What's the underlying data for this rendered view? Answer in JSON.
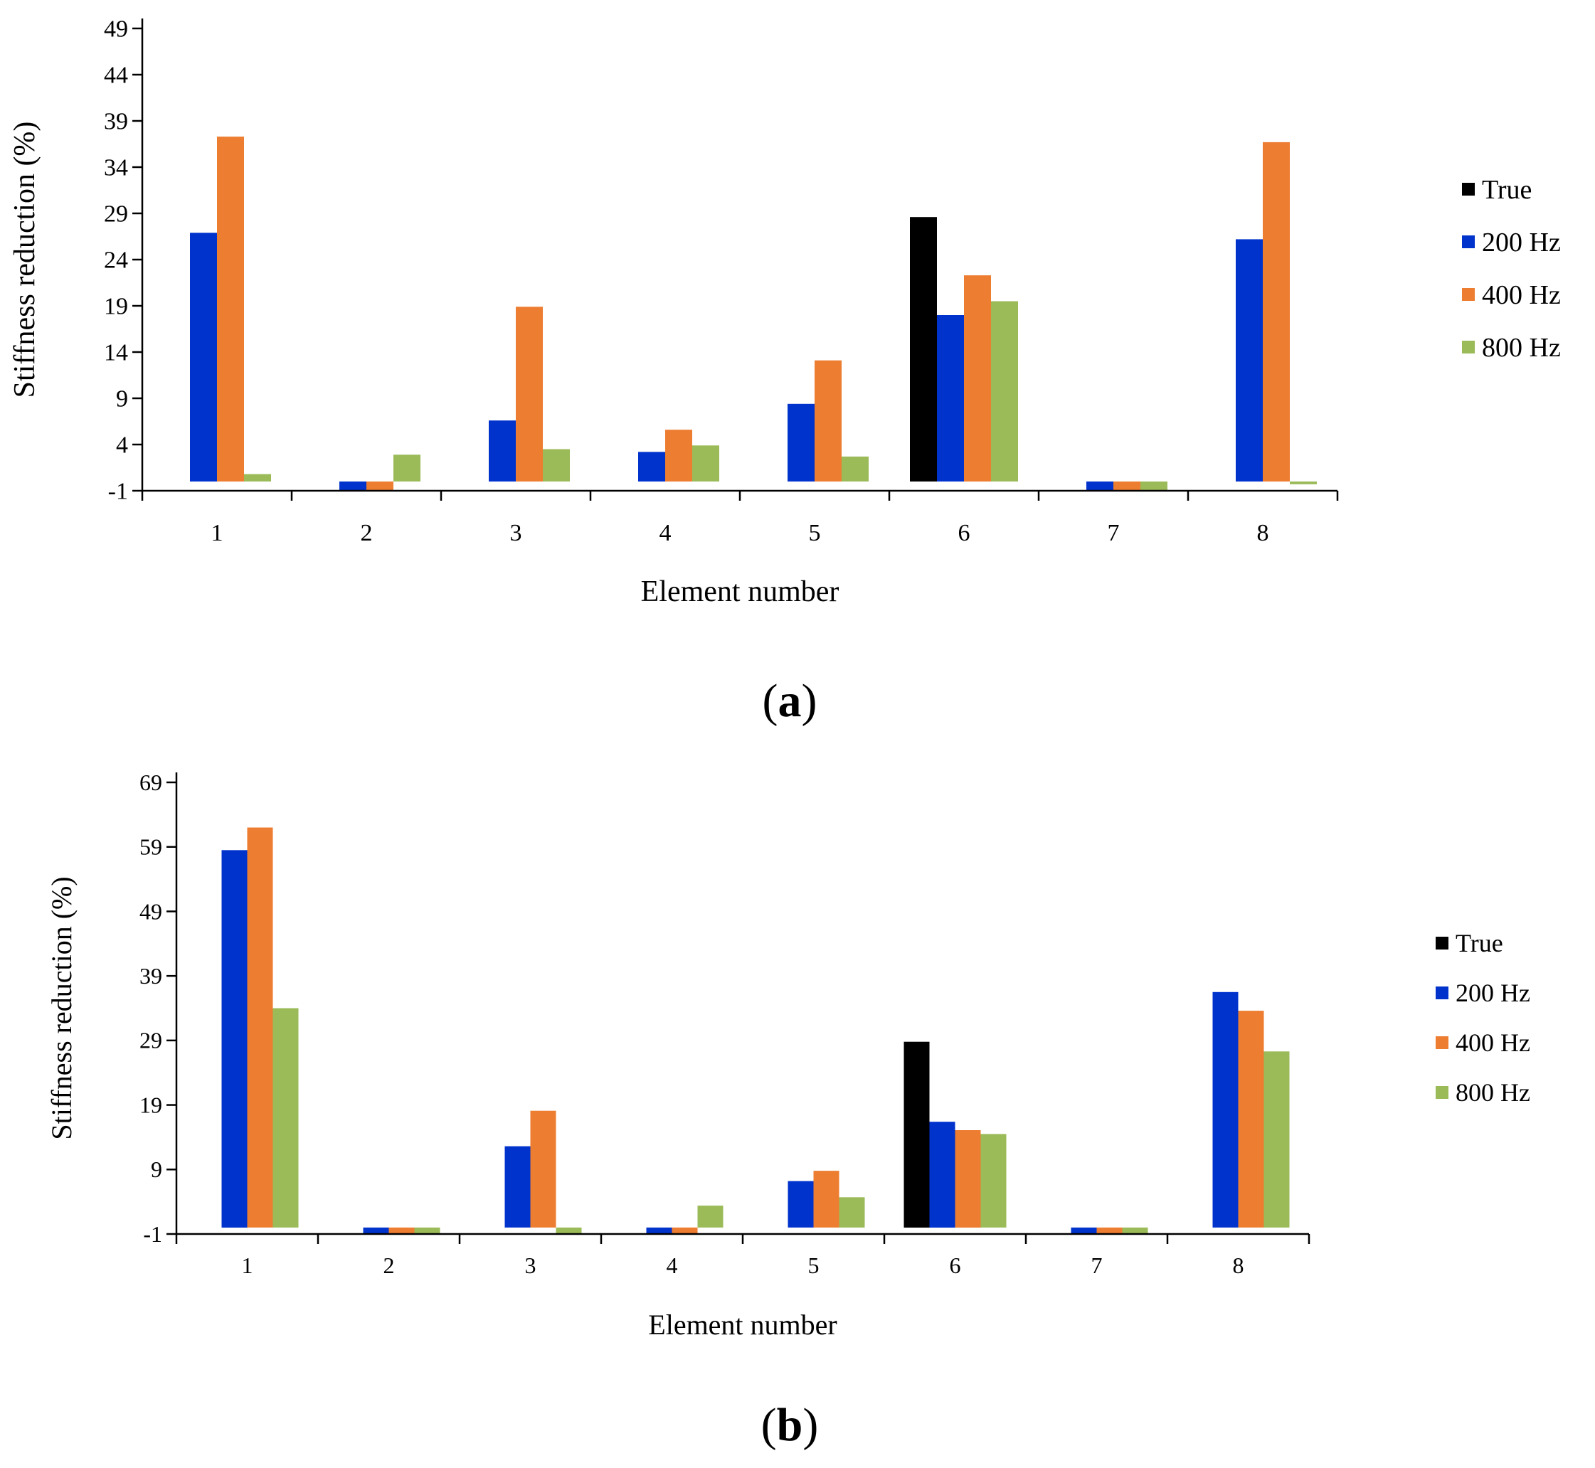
{
  "panels": [
    {
      "open": "(",
      "letter": "a",
      "close": ")"
    },
    {
      "open": "(",
      "letter": "b",
      "close": ")"
    }
  ],
  "colors": {
    "True": "#000000",
    "200 Hz": "#0033cc",
    "400 Hz": "#ed7d31",
    "800 Hz": "#9bbb59"
  },
  "chart_data": [
    {
      "type": "bar",
      "xlabel": "Element number",
      "ylabel": "Stiffness  reduction  (%)",
      "ylim": [
        -1,
        49
      ],
      "yticks": [
        -1,
        4,
        9,
        14,
        19,
        24,
        29,
        34,
        39,
        44,
        49
      ],
      "categories": [
        "1",
        "2",
        "3",
        "4",
        "5",
        "6",
        "7",
        "8"
      ],
      "series": [
        {
          "name": "True",
          "values": [
            0,
            0,
            0,
            0,
            0,
            28.6,
            0,
            0
          ]
        },
        {
          "name": "200 Hz",
          "values": [
            26.9,
            -1,
            6.6,
            3.2,
            8.4,
            18.0,
            -1,
            26.2
          ]
        },
        {
          "name": "400 Hz",
          "values": [
            37.3,
            -1,
            18.9,
            5.6,
            13.1,
            22.3,
            -1,
            36.7
          ]
        },
        {
          "name": "800 Hz",
          "values": [
            0.8,
            2.9,
            3.5,
            3.9,
            2.7,
            19.5,
            -1,
            -0.3
          ]
        }
      ]
    },
    {
      "type": "bar",
      "xlabel": "Element number",
      "ylabel": "Stiffness  reduction  (%)",
      "ylim": [
        -1,
        69
      ],
      "yticks": [
        -1,
        9,
        19,
        29,
        39,
        49,
        59,
        69
      ],
      "categories": [
        "1",
        "2",
        "3",
        "4",
        "5",
        "6",
        "7",
        "8"
      ],
      "series": [
        {
          "name": "True",
          "values": [
            0,
            0,
            0,
            0,
            0,
            28.8,
            0,
            0
          ]
        },
        {
          "name": "200 Hz",
          "values": [
            58.5,
            -1,
            12.6,
            -1,
            7.2,
            16.4,
            -1,
            36.5
          ]
        },
        {
          "name": "400 Hz",
          "values": [
            62.0,
            -1,
            18.1,
            -1,
            8.8,
            15.1,
            -1,
            33.6
          ]
        },
        {
          "name": "800 Hz",
          "values": [
            34.0,
            -1,
            -1,
            3.4,
            4.7,
            14.5,
            -1,
            27.3
          ]
        }
      ]
    }
  ]
}
